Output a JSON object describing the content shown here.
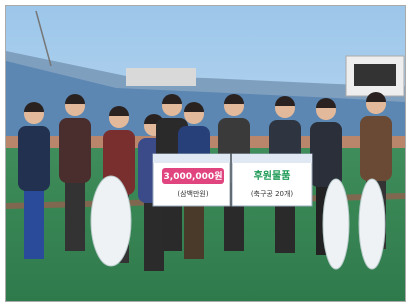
{
  "boards": [
    {
      "amount": "3,000,000원",
      "note": "(삼백만원)"
    },
    {
      "title": "후원물품",
      "note": "(축구공 20개)"
    }
  ]
}
